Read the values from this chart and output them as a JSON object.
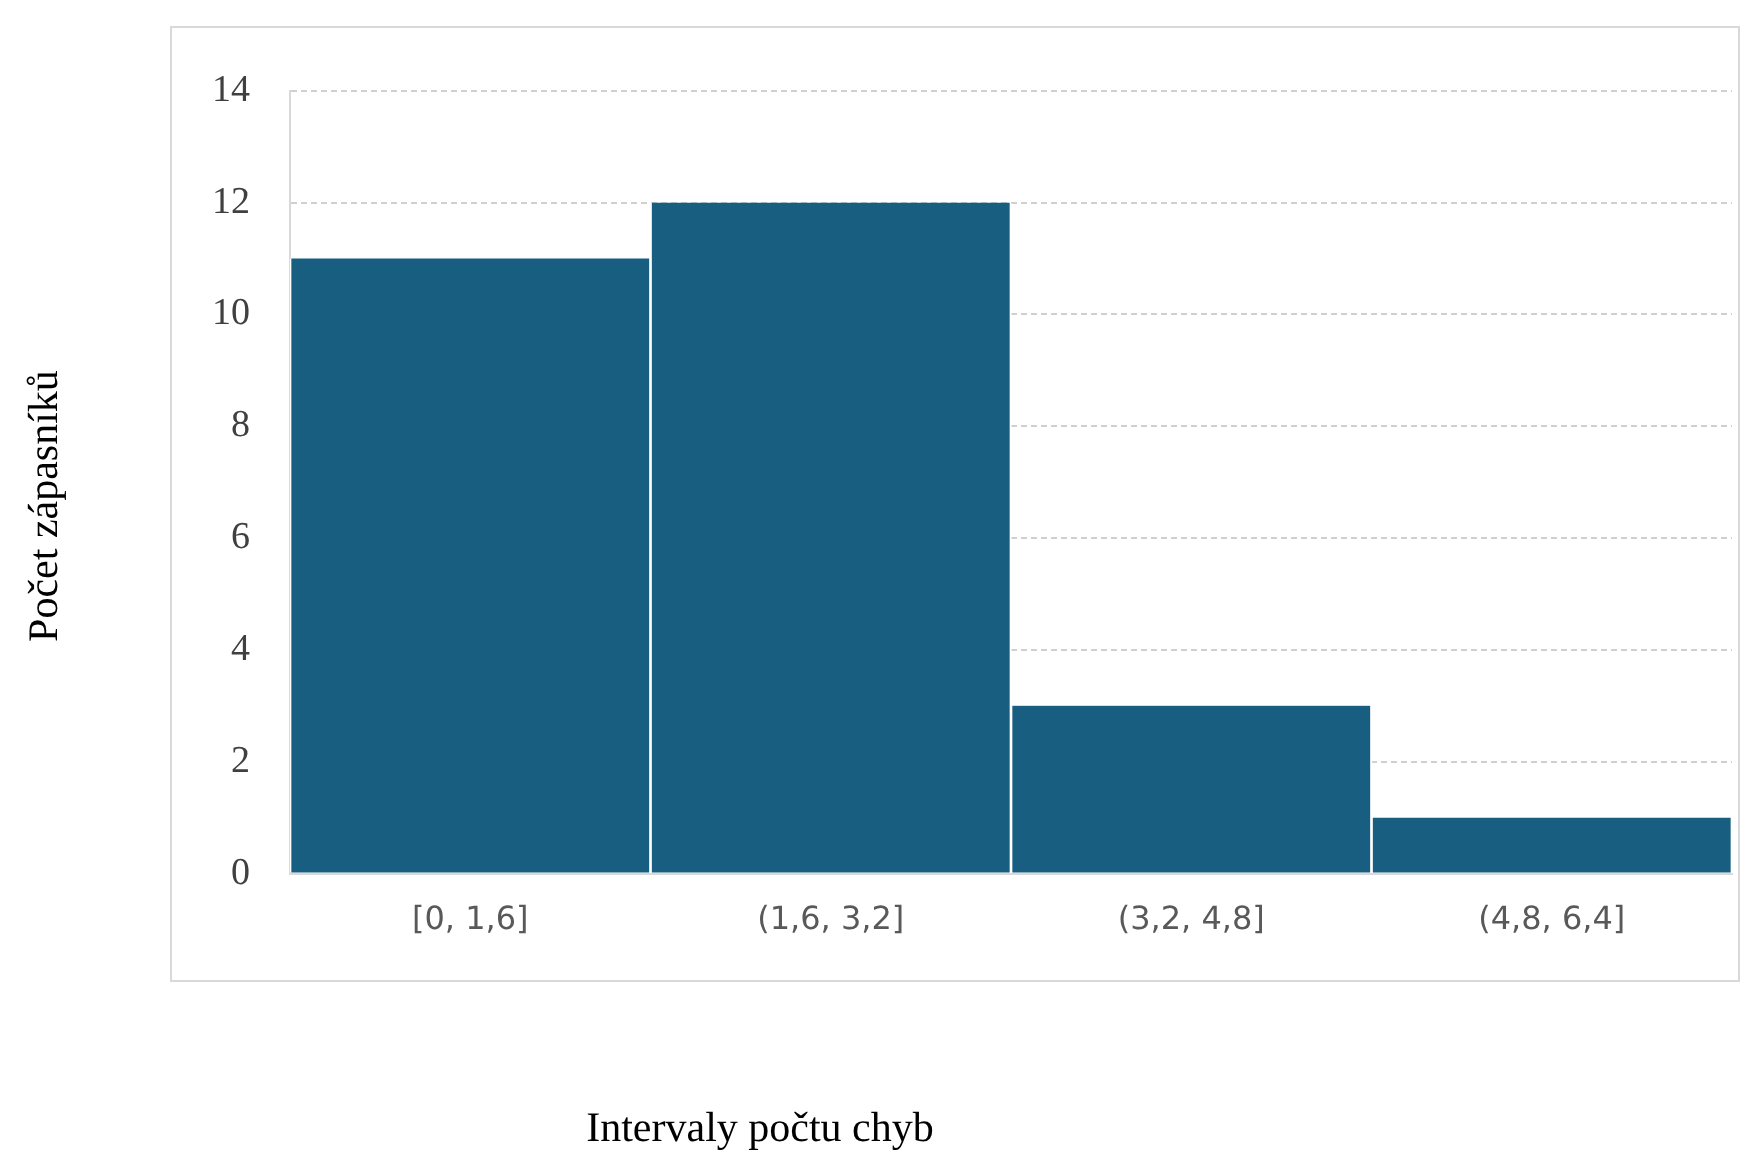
{
  "chart_data": {
    "type": "bar",
    "xlabel": "Intervaly počtu chyb",
    "ylabel": "Počet zápasníků",
    "categories": [
      "[0, 1,6]",
      "(1,6, 3,2]",
      "(3,2, 4,8]",
      "(4,8, 6,4]"
    ],
    "values": [
      11,
      12,
      3,
      1
    ],
    "color": "#175e80",
    "ylim": [
      0,
      14
    ],
    "yticks": [
      0,
      2,
      4,
      6,
      8,
      10,
      12,
      14
    ],
    "grid": "y",
    "legend": false
  }
}
